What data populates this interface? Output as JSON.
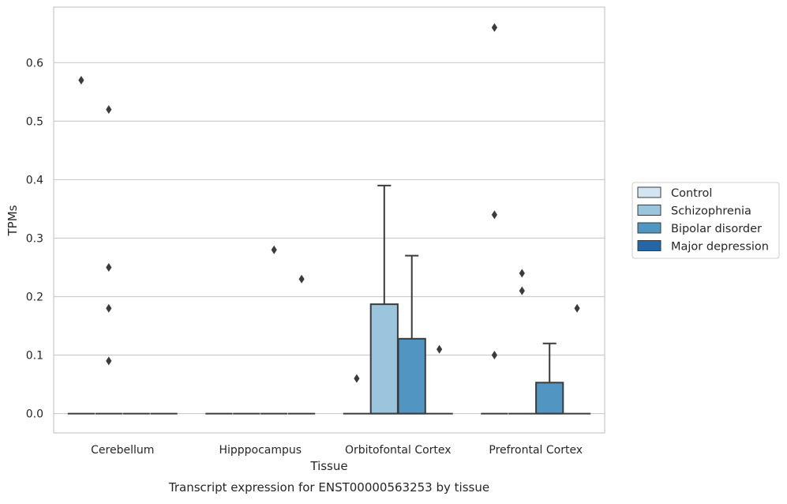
{
  "chart_data": {
    "type": "box",
    "title": "",
    "caption": "Transcript expression for ENST00000563253 by tissue",
    "xlabel": "Tissue",
    "ylabel": "TPMs",
    "ylim": [
      -0.033,
      0.695
    ],
    "yticks": [
      0.0,
      0.1,
      0.2,
      0.3,
      0.4,
      0.5,
      0.6
    ],
    "ytick_labels": [
      "0.0",
      "0.1",
      "0.2",
      "0.3",
      "0.4",
      "0.5",
      "0.6"
    ],
    "grid": "horizontal",
    "legend_position": "right",
    "categories": [
      "Cerebellum",
      "Hipppocampus",
      "Orbitofontal Cortex",
      "Prefrontal Cortex"
    ],
    "series": [
      {
        "name": "Control",
        "color": "#d3e4f2",
        "boxes": [
          {
            "q1": 0,
            "median": 0,
            "q3": 0,
            "whisker_low": 0,
            "whisker_high": 0,
            "outliers": [
              0.57
            ]
          },
          {
            "q1": 0,
            "median": 0,
            "q3": 0,
            "whisker_low": 0,
            "whisker_high": 0,
            "outliers": []
          },
          {
            "q1": 0,
            "median": 0,
            "q3": 0,
            "whisker_low": 0,
            "whisker_high": 0,
            "outliers": [
              0.06
            ]
          },
          {
            "q1": 0,
            "median": 0,
            "q3": 0,
            "whisker_low": 0,
            "whisker_high": 0,
            "outliers": [
              0.66,
              0.34,
              0.1
            ]
          }
        ]
      },
      {
        "name": "Schizophrenia",
        "color": "#9ac5dd",
        "boxes": [
          {
            "q1": 0,
            "median": 0,
            "q3": 0,
            "whisker_low": 0,
            "whisker_high": 0,
            "outliers": [
              0.52,
              0.25,
              0.18,
              0.09
            ]
          },
          {
            "q1": 0,
            "median": 0,
            "q3": 0,
            "whisker_low": 0,
            "whisker_high": 0,
            "outliers": []
          },
          {
            "q1": 0,
            "median": 0,
            "q3": 0.187,
            "whisker_low": 0,
            "whisker_high": 0.39,
            "outliers": []
          },
          {
            "q1": 0,
            "median": 0,
            "q3": 0,
            "whisker_low": 0,
            "whisker_high": 0,
            "outliers": [
              0.24,
              0.21
            ]
          }
        ]
      },
      {
        "name": "Bipolar disorder",
        "color": "#5196c3",
        "boxes": [
          {
            "q1": 0,
            "median": 0,
            "q3": 0,
            "whisker_low": 0,
            "whisker_high": 0,
            "outliers": []
          },
          {
            "q1": 0,
            "median": 0,
            "q3": 0,
            "whisker_low": 0,
            "whisker_high": 0,
            "outliers": [
              0.28
            ]
          },
          {
            "q1": 0,
            "median": 0,
            "q3": 0.128,
            "whisker_low": 0,
            "whisker_high": 0.27,
            "outliers": []
          },
          {
            "q1": 0,
            "median": 0,
            "q3": 0.053,
            "whisker_low": 0,
            "whisker_high": 0.12,
            "outliers": []
          }
        ]
      },
      {
        "name": "Major depression",
        "color": "#2466a8",
        "boxes": [
          {
            "q1": 0,
            "median": 0,
            "q3": 0,
            "whisker_low": 0,
            "whisker_high": 0,
            "outliers": []
          },
          {
            "q1": 0,
            "median": 0,
            "q3": 0,
            "whisker_low": 0,
            "whisker_high": 0,
            "outliers": [
              0.23
            ]
          },
          {
            "q1": 0,
            "median": 0,
            "q3": 0,
            "whisker_low": 0,
            "whisker_high": 0,
            "outliers": [
              0.11
            ]
          },
          {
            "q1": 0,
            "median": 0,
            "q3": 0,
            "whisker_low": 0,
            "whisker_high": 0,
            "outliers": [
              0.18
            ]
          }
        ]
      }
    ]
  }
}
